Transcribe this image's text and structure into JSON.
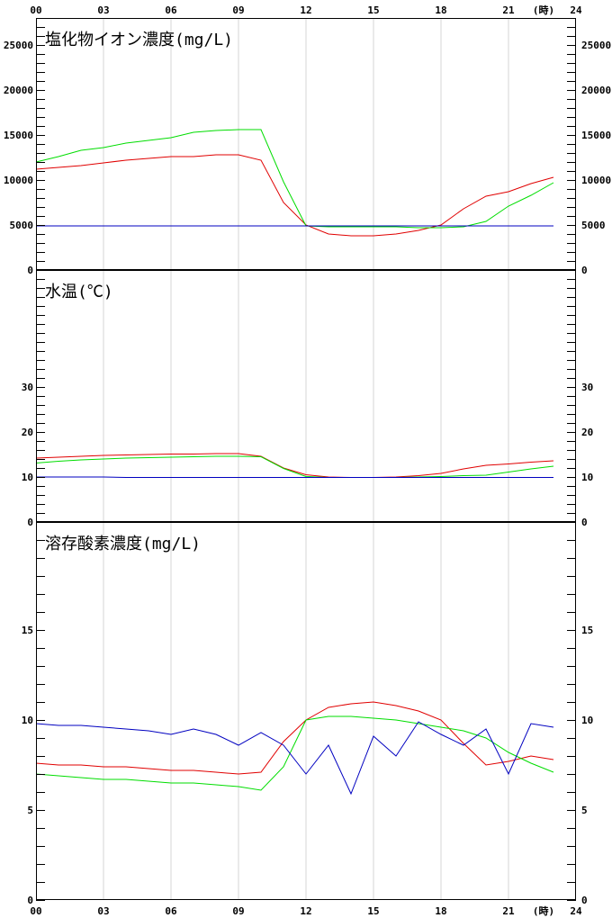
{
  "chart_data": {
    "type": "line",
    "x_unit_label": "(時)",
    "x_ticks": [
      "00",
      "03",
      "06",
      "09",
      "12",
      "15",
      "18",
      "21",
      "24"
    ],
    "x_hours": [
      0,
      1,
      2,
      3,
      4,
      5,
      6,
      7,
      8,
      9,
      10,
      11,
      12,
      13,
      14,
      15,
      16,
      17,
      18,
      19,
      20,
      21,
      22,
      23
    ],
    "series_colors": [
      "#e00000",
      "#00dd00",
      "#0000c0"
    ],
    "panels": [
      {
        "title": "塩化物イオン濃度(mg/L)",
        "ylim": [
          0,
          28000
        ],
        "y_ticks": [
          0,
          5000,
          10000,
          15000,
          20000,
          25000
        ],
        "minor_step": 1000,
        "series": [
          {
            "color": "#e00000",
            "values": [
              11200,
              11400,
              11600,
              11900,
              12200,
              12400,
              12600,
              12600,
              12800,
              12800,
              12200,
              7500,
              5000,
              4000,
              3800,
              3800,
              4000,
              4400,
              5000,
              6800,
              8200,
              8700,
              9600,
              10300
            ]
          },
          {
            "color": "#00dd00",
            "values": [
              12000,
              12600,
              13300,
              13600,
              14100,
              14400,
              14700,
              15300,
              15500,
              15600,
              15600,
              9800,
              4900,
              4800,
              4800,
              4800,
              4800,
              4700,
              4700,
              4800,
              5400,
              7100,
              8300,
              9700
            ]
          },
          {
            "color": "#0000c0",
            "values": [
              4900,
              4900,
              4900,
              4900,
              4900,
              4900,
              4900,
              4900,
              4900,
              4900,
              4900,
              4900,
              4900,
              4900,
              4900,
              4900,
              4900,
              4900,
              4900,
              4900,
              4900,
              4900,
              4900,
              4900
            ]
          }
        ]
      },
      {
        "title": "水温(℃)",
        "ylim": [
          0,
          56
        ],
        "y_ticks": [
          0,
          10,
          20,
          30
        ],
        "minor_step": 2,
        "series": [
          {
            "color": "#e00000",
            "values": [
              14.2,
              14.4,
              14.6,
              14.8,
              14.9,
              15.0,
              15.1,
              15.1,
              15.2,
              15.2,
              14.6,
              12.0,
              10.5,
              10.0,
              9.9,
              9.9,
              10.0,
              10.3,
              10.8,
              11.8,
              12.6,
              12.9,
              13.3,
              13.6
            ]
          },
          {
            "color": "#00dd00",
            "values": [
              13.1,
              13.5,
              13.8,
              14.0,
              14.2,
              14.3,
              14.4,
              14.5,
              14.6,
              14.6,
              14.5,
              11.9,
              10.1,
              9.9,
              9.9,
              9.9,
              9.9,
              10.0,
              10.1,
              10.3,
              10.4,
              11.1,
              11.8,
              12.4
            ]
          },
          {
            "color": "#0000c0",
            "values": [
              10.0,
              10.0,
              10.0,
              10.0,
              9.9,
              9.9,
              9.9,
              9.9,
              9.9,
              9.9,
              9.9,
              9.9,
              9.9,
              9.9,
              9.9,
              9.9,
              9.9,
              9.9,
              9.9,
              9.9,
              9.9,
              9.9,
              9.9,
              9.9
            ]
          }
        ]
      },
      {
        "title": "溶存酸素濃度(mg/L)",
        "ylim": [
          0,
          21
        ],
        "y_ticks": [
          0,
          5,
          10,
          15
        ],
        "minor_step": 1,
        "series": [
          {
            "color": "#e00000",
            "values": [
              7.6,
              7.5,
              7.5,
              7.4,
              7.4,
              7.3,
              7.2,
              7.2,
              7.1,
              7.0,
              7.1,
              8.8,
              10.0,
              10.7,
              10.9,
              11.0,
              10.8,
              10.5,
              10.0,
              8.7,
              7.5,
              7.7,
              8.0,
              7.8
            ]
          },
          {
            "color": "#00dd00",
            "values": [
              7.0,
              6.9,
              6.8,
              6.7,
              6.7,
              6.6,
              6.5,
              6.5,
              6.4,
              6.3,
              6.1,
              7.4,
              10.0,
              10.2,
              10.2,
              10.1,
              10.0,
              9.8,
              9.6,
              9.4,
              9.0,
              8.2,
              7.6,
              7.1
            ]
          },
          {
            "color": "#0000c0",
            "values": [
              9.8,
              9.7,
              9.7,
              9.6,
              9.5,
              9.4,
              9.2,
              9.5,
              9.2,
              8.6,
              9.3,
              8.6,
              7.0,
              8.6,
              5.9,
              9.1,
              8.0,
              9.9,
              9.2,
              8.6,
              9.5,
              7.0,
              9.8,
              9.6
            ]
          }
        ]
      }
    ]
  }
}
